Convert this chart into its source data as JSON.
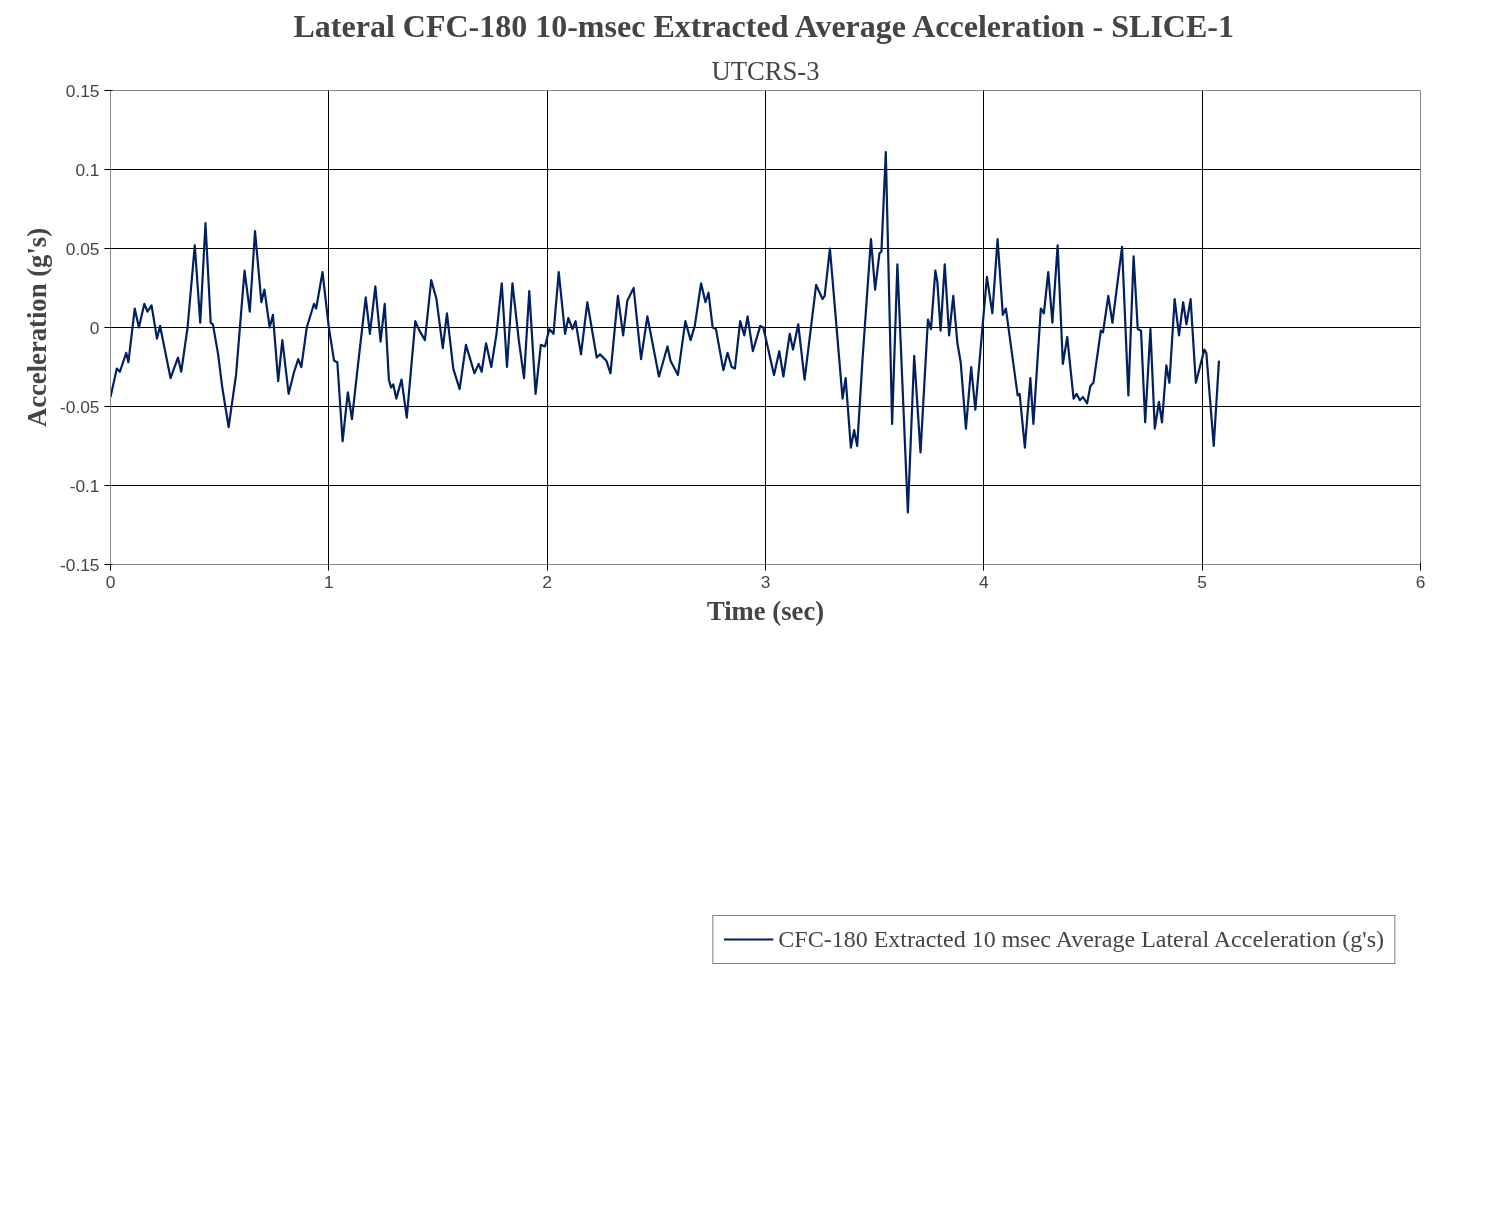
{
  "chart_data": {
    "type": "line",
    "title": "Lateral CFC-180 10-msec Extracted Average Acceleration - SLICE-1",
    "subtitle": "UTCRS-3",
    "xlabel": "Time (sec)",
    "ylabel": "Acceleration (g's)",
    "xlim": [
      0,
      6
    ],
    "ylim": [
      -0.15,
      0.15
    ],
    "xticks": [
      0,
      1,
      2,
      3,
      4,
      5,
      6
    ],
    "yticks": [
      -0.15,
      -0.1,
      -0.05,
      0,
      0.05,
      0.1,
      0.15
    ],
    "grid": true,
    "legend": "bottom",
    "marker": "none",
    "line_style": "solid",
    "series": [
      {
        "name": "CFC-180 Extracted 10 msec Average Lateral Acceleration (g's)",
        "color": "#002060",
        "x": [
          0,
          0.029,
          0.043,
          0.072,
          0.082,
          0.111,
          0.13,
          0.155,
          0.169,
          0.188,
          0.213,
          0.227,
          0.275,
          0.309,
          0.324,
          0.353,
          0.386,
          0.411,
          0.435,
          0.459,
          0.469,
          0.493,
          0.512,
          0.541,
          0.575,
          0.614,
          0.638,
          0.662,
          0.691,
          0.705,
          0.729,
          0.744,
          0.768,
          0.787,
          0.816,
          0.841,
          0.86,
          0.874,
          0.899,
          0.932,
          0.942,
          0.971,
          1.0,
          1.024,
          1.039,
          1.063,
          1.087,
          1.106,
          1.13,
          1.169,
          1.188,
          1.213,
          1.237,
          1.256,
          1.275,
          1.285,
          1.295,
          1.309,
          1.333,
          1.357,
          1.396,
          1.415,
          1.44,
          1.469,
          1.493,
          1.522,
          1.541,
          1.57,
          1.599,
          1.628,
          1.667,
          1.686,
          1.7,
          1.72,
          1.744,
          1.768,
          1.792,
          1.816,
          1.841,
          1.87,
          1.894,
          1.918,
          1.947,
          1.971,
          1.99,
          2.01,
          2.029,
          2.053,
          2.082,
          2.097,
          2.116,
          2.13,
          2.155,
          2.184,
          2.227,
          2.242,
          2.271,
          2.29,
          2.324,
          2.348,
          2.367,
          2.396,
          2.43,
          2.459,
          2.512,
          2.551,
          2.565,
          2.599,
          2.633,
          2.657,
          2.676,
          2.705,
          2.725,
          2.739,
          2.758,
          2.773,
          2.807,
          2.826,
          2.845,
          2.86,
          2.884,
          2.903,
          2.918,
          2.942,
          2.976,
          2.99,
          3.039,
          3.063,
          3.082,
          3.111,
          3.126,
          3.15,
          3.179,
          3.232,
          3.261,
          3.271,
          3.295,
          3.353,
          3.367,
          3.391,
          3.406,
          3.42,
          3.444,
          3.483,
          3.502,
          3.522,
          3.531,
          3.551,
          3.58,
          3.604,
          3.652,
          3.681,
          3.71,
          3.744,
          3.758,
          3.778,
          3.787,
          3.802,
          3.821,
          3.841,
          3.86,
          3.879,
          3.894,
          3.918,
          3.942,
          3.961,
          3.99,
          4.014,
          4.039,
          4.063,
          4.087,
          4.101,
          4.155,
          4.164,
          4.188,
          4.213,
          4.227,
          4.261,
          4.275,
          4.295,
          4.314,
          4.338,
          4.362,
          4.382,
          4.411,
          4.425,
          4.44,
          4.454,
          4.473,
          4.488,
          4.502,
          4.536,
          4.546,
          4.57,
          4.589,
          4.633,
          4.662,
          4.686,
          4.705,
          4.72,
          4.739,
          4.763,
          4.783,
          4.802,
          4.816,
          4.836,
          4.85,
          4.874,
          4.894,
          4.913,
          4.928,
          4.947,
          4.971,
          5.01,
          5.019,
          5.053,
          5.077
        ],
        "values": [
          -0.044,
          -0.026,
          -0.028,
          -0.016,
          -0.022,
          0.012,
          0,
          0.015,
          0.01,
          0.014,
          -0.007,
          0.001,
          -0.032,
          -0.019,
          -0.028,
          0,
          0.052,
          0.003,
          0.066,
          0.003,
          0.002,
          -0.017,
          -0.038,
          -0.063,
          -0.03,
          0.036,
          0.01,
          0.061,
          0.016,
          0.024,
          0,
          0.008,
          -0.034,
          -0.008,
          -0.042,
          -0.028,
          -0.02,
          -0.025,
          0,
          0.015,
          0.012,
          0.035,
          0,
          -0.021,
          -0.022,
          -0.072,
          -0.041,
          -0.058,
          -0.028,
          0.019,
          -0.004,
          0.026,
          -0.009,
          0.015,
          -0.033,
          -0.038,
          -0.036,
          -0.045,
          -0.033,
          -0.057,
          0.004,
          -0.002,
          -0.008,
          0.03,
          0.018,
          -0.013,
          0.009,
          -0.026,
          -0.039,
          -0.011,
          -0.029,
          -0.023,
          -0.028,
          -0.01,
          -0.025,
          -0.004,
          0.028,
          -0.025,
          0.028,
          -0.008,
          -0.032,
          0.023,
          -0.042,
          -0.011,
          -0.012,
          -0.001,
          -0.004,
          0.035,
          -0.004,
          0.006,
          -0.001,
          0.004,
          -0.017,
          0.016,
          -0.019,
          -0.017,
          -0.021,
          -0.029,
          0.02,
          -0.005,
          0.017,
          0.025,
          -0.02,
          0.007,
          -0.031,
          -0.012,
          -0.021,
          -0.03,
          0.004,
          -0.008,
          0.001,
          0.028,
          0.016,
          0.022,
          0,
          -0.001,
          -0.027,
          -0.016,
          -0.025,
          -0.026,
          0.004,
          -0.005,
          0.007,
          -0.015,
          0.001,
          0,
          -0.03,
          -0.015,
          -0.031,
          -0.004,
          -0.014,
          0.002,
          -0.033,
          0.027,
          0.018,
          0.02,
          0.05,
          -0.045,
          -0.032,
          -0.076,
          -0.065,
          -0.075,
          -0.021,
          0.056,
          0.024,
          0.047,
          0.048,
          0.111,
          -0.061,
          0.04,
          -0.117,
          -0.018,
          -0.079,
          0.005,
          -0.001,
          0.036,
          0.029,
          -0.002,
          0.04,
          -0.005,
          0.02,
          -0.01,
          -0.022,
          -0.064,
          -0.025,
          -0.052,
          -0.006,
          0.032,
          0.009,
          0.056,
          0.008,
          0.012,
          -0.043,
          -0.042,
          -0.076,
          -0.032,
          -0.061,
          0.012,
          0.009,
          0.035,
          0.003,
          0.052,
          -0.023,
          -0.006,
          -0.045,
          -0.042,
          -0.046,
          -0.044,
          -0.048,
          -0.037,
          -0.035,
          -0.002,
          -0.003,
          0.02,
          0.003,
          0.051,
          -0.043,
          0.045,
          -0.001,
          -0.002,
          -0.06,
          -0.001,
          -0.064,
          -0.047,
          -0.06,
          -0.024,
          -0.035,
          0.018,
          -0.005,
          0.016,
          0.002,
          0.018,
          -0.035,
          -0.014,
          -0.016,
          -0.075,
          -0.021
        ]
      }
    ]
  }
}
